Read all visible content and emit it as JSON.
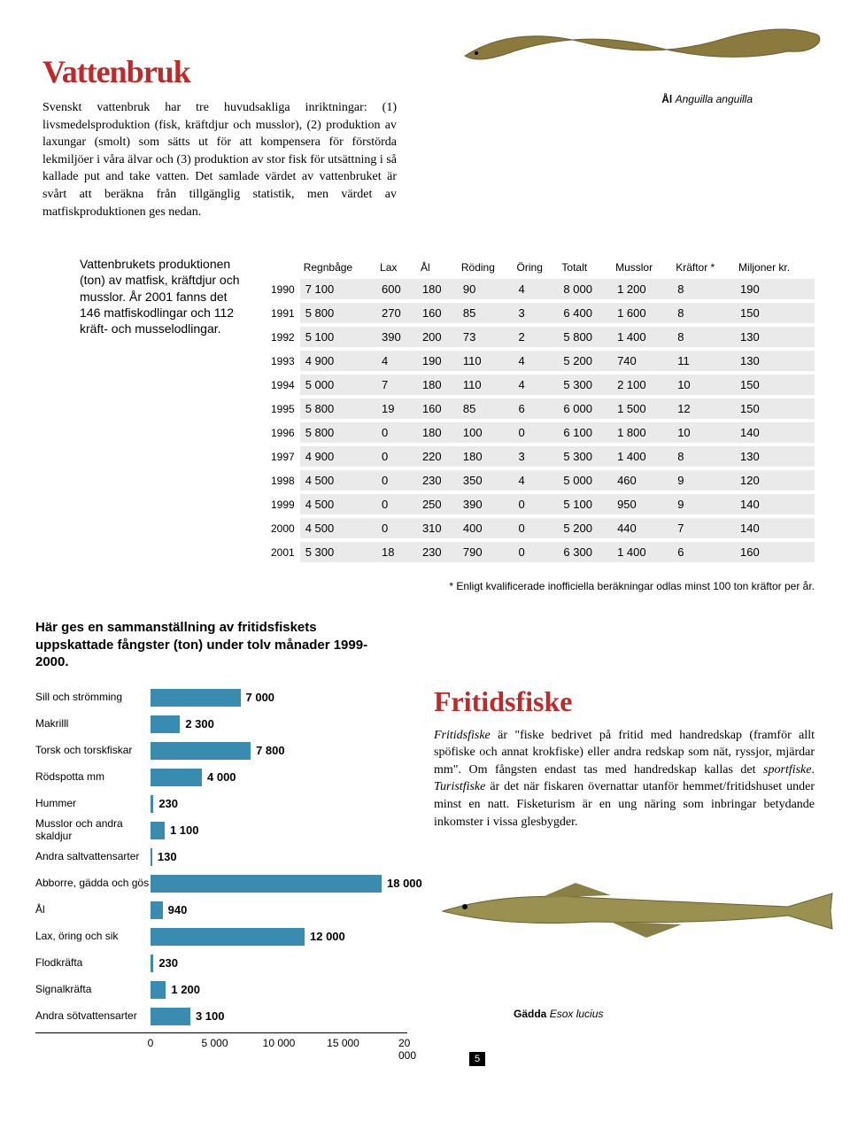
{
  "header": {
    "title": "Vattenbruk",
    "intro": "Svenskt vattenbruk har tre huvudsakliga inriktningar: (1) livsmedelsproduktion (fisk, kräftdjur och musslor), (2) produktion av laxungar (smolt) som sätts ut för att kompensera för förstörda lekmiljöer i våra älvar och (3) produktion av stor fisk för utsättning i så kallade put and take vatten. Det samlade värdet av vattenbruket är svårt att beräkna från tillgänglig statistik, men värdet av matfiskproduktionen ges nedan.",
    "eel_label": "Ål",
    "eel_latin": "Anguilla anguilla"
  },
  "table": {
    "caption": "Vattenbrukets produktionen (ton) av matfisk, kräftdjur och musslor. År 2001 fanns det 146 matfiskodlingar och 112 kräft- och musselodlingar.",
    "columns": [
      "Regnbåge",
      "Lax",
      "Ål",
      "Röding",
      "Öring",
      "Totalt",
      "Musslor",
      "Kräftor *",
      "Miljoner kr."
    ],
    "years": [
      "1990",
      "1991",
      "1992",
      "1993",
      "1994",
      "1995",
      "1996",
      "1997",
      "1998",
      "1999",
      "2000",
      "2001"
    ],
    "rows": [
      [
        "7 100",
        "600",
        "180",
        "90",
        "4",
        "8 000",
        "1 200",
        "8",
        "190"
      ],
      [
        "5 800",
        "270",
        "160",
        "85",
        "3",
        "6 400",
        "1 600",
        "8",
        "150"
      ],
      [
        "5 100",
        "390",
        "200",
        "73",
        "2",
        "5 800",
        "1 400",
        "8",
        "130"
      ],
      [
        "4 900",
        "4",
        "190",
        "110",
        "4",
        "5 200",
        "740",
        "11",
        "130"
      ],
      [
        "5 000",
        "7",
        "180",
        "110",
        "4",
        "5 300",
        "2 100",
        "10",
        "150"
      ],
      [
        "5 800",
        "19",
        "160",
        "85",
        "6",
        "6 000",
        "1 500",
        "12",
        "150"
      ],
      [
        "5 800",
        "0",
        "180",
        "100",
        "0",
        "6 100",
        "1 800",
        "10",
        "140"
      ],
      [
        "4 900",
        "0",
        "220",
        "180",
        "3",
        "5 300",
        "1 400",
        "8",
        "130"
      ],
      [
        "4 500",
        "0",
        "230",
        "350",
        "4",
        "5 000",
        "460",
        "9",
        "120"
      ],
      [
        "4 500",
        "0",
        "250",
        "390",
        "0",
        "5 100",
        "950",
        "9",
        "140"
      ],
      [
        "4 500",
        "0",
        "310",
        "400",
        "0",
        "5 200",
        "440",
        "7",
        "140"
      ],
      [
        "5 300",
        "18",
        "230",
        "790",
        "0",
        "6 300",
        "1 400",
        "6",
        "160"
      ]
    ],
    "footnote": "* Enligt kvalificerade inofficiella beräkningar odlas minst 100 ton kräftor per år.",
    "header_bg": "#ffffff",
    "cell_bg": "#eaeaea",
    "font_size": 13
  },
  "chart": {
    "intro": "Här ges en sammanställning av fritidsfiskets uppskattade fångster (ton) under tolv månader 1999-2000.",
    "type": "bar",
    "bar_color": "#3a8bb0",
    "xmax": 20000,
    "xticks": [
      0,
      5000,
      10000,
      15000,
      20000
    ],
    "xtick_labels": [
      "0",
      "5 000",
      "10 000",
      "15 000",
      "20 000"
    ],
    "items": [
      {
        "label": "Sill och strömming",
        "value": 7000,
        "display": "7 000"
      },
      {
        "label": "Makrilll",
        "value": 2300,
        "display": "2 300"
      },
      {
        "label": "Torsk och torskfiskar",
        "value": 7800,
        "display": "7 800"
      },
      {
        "label": "Rödspotta mm",
        "value": 4000,
        "display": "4 000"
      },
      {
        "label": "Hummer",
        "value": 230,
        "display": "230"
      },
      {
        "label": "Musslor och andra skaldjur",
        "value": 1100,
        "display": "1 100"
      },
      {
        "label": "Andra saltvattensarter",
        "value": 130,
        "display": "130"
      },
      {
        "label": "Abborre, gädda och gös",
        "value": 18000,
        "display": "18 000"
      },
      {
        "label": "Ål",
        "value": 940,
        "display": "940"
      },
      {
        "label": "Lax, öring och sik",
        "value": 12000,
        "display": "12 000"
      },
      {
        "label": "Flodkräfta",
        "value": 230,
        "display": "230"
      },
      {
        "label": "Signalkräfta",
        "value": 1200,
        "display": "1 200"
      },
      {
        "label": "Andra sötvattensarter",
        "value": 3100,
        "display": "3 100"
      }
    ]
  },
  "article": {
    "title": "Fritidsfiske",
    "body": "Fritidsfiske är \"fiske bedrivet på fritid med handredskap (framför allt spöfiske och annat krokfiske) eller andra redskap som nät, ryssjor, mjärdar mm\". Om fångsten endast tas med handredskap kallas det sportfiske. Turistfiske är det när fiskaren övernattar utanför hemmet/fritidshuset under minst en natt. Fisketurism är en ung näring som inbringar betydande inkomster i vissa glesbygder.",
    "pike_label": "Gädda",
    "pike_latin": "Esox lucius"
  },
  "page_number": "5"
}
